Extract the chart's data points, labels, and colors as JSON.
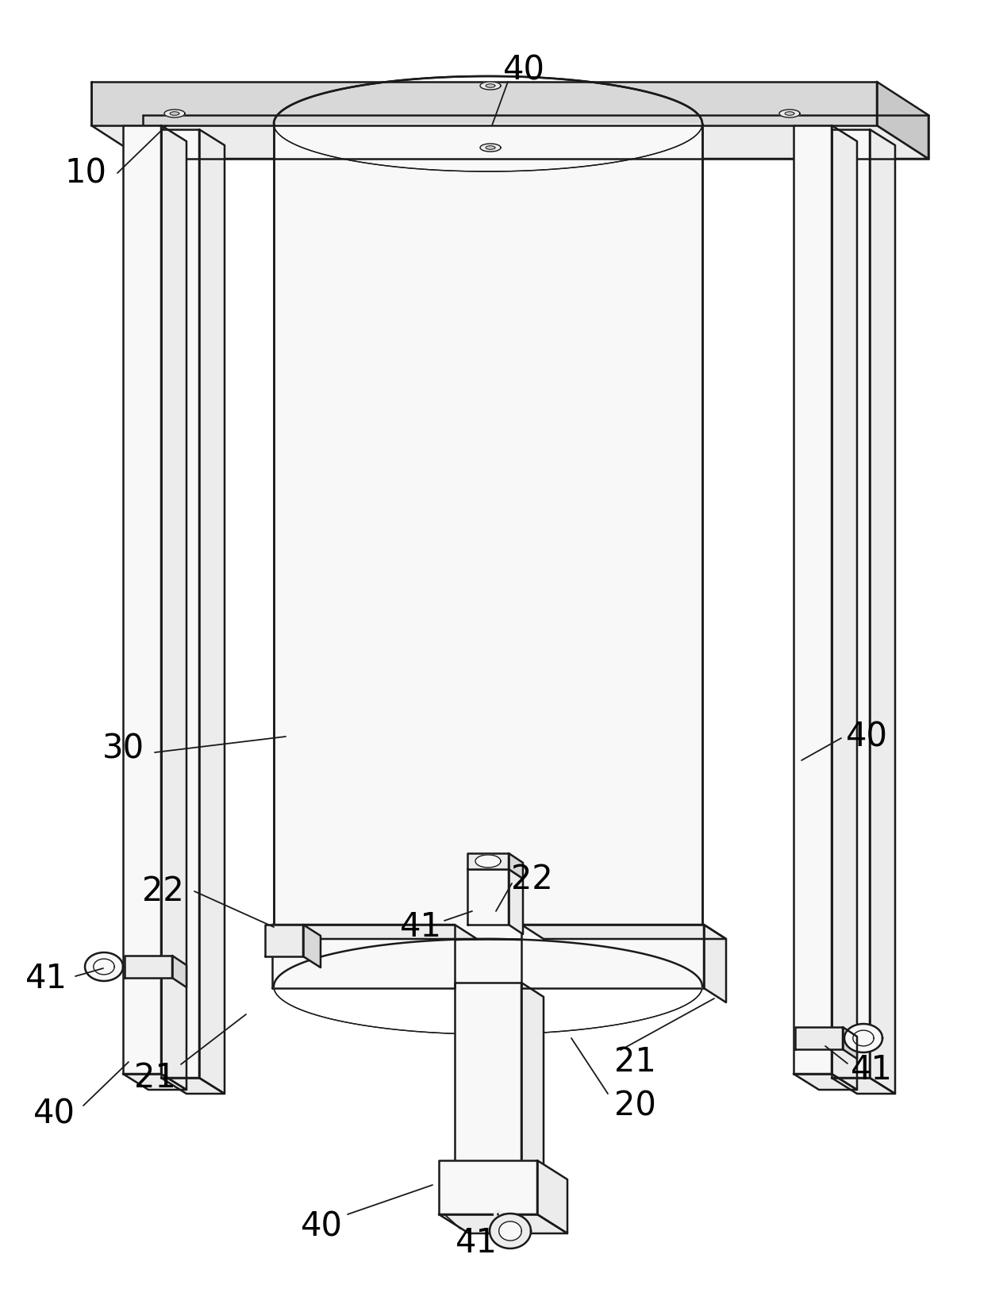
{
  "bg_color": "#ffffff",
  "line_color": "#1a1a1a",
  "lw": 1.8,
  "lw_thin": 1.0,
  "fill_light": "#f8f8f8",
  "fill_mid": "#ececec",
  "fill_dark": "#d8d8d8",
  "fill_darker": "#c8c8c8"
}
